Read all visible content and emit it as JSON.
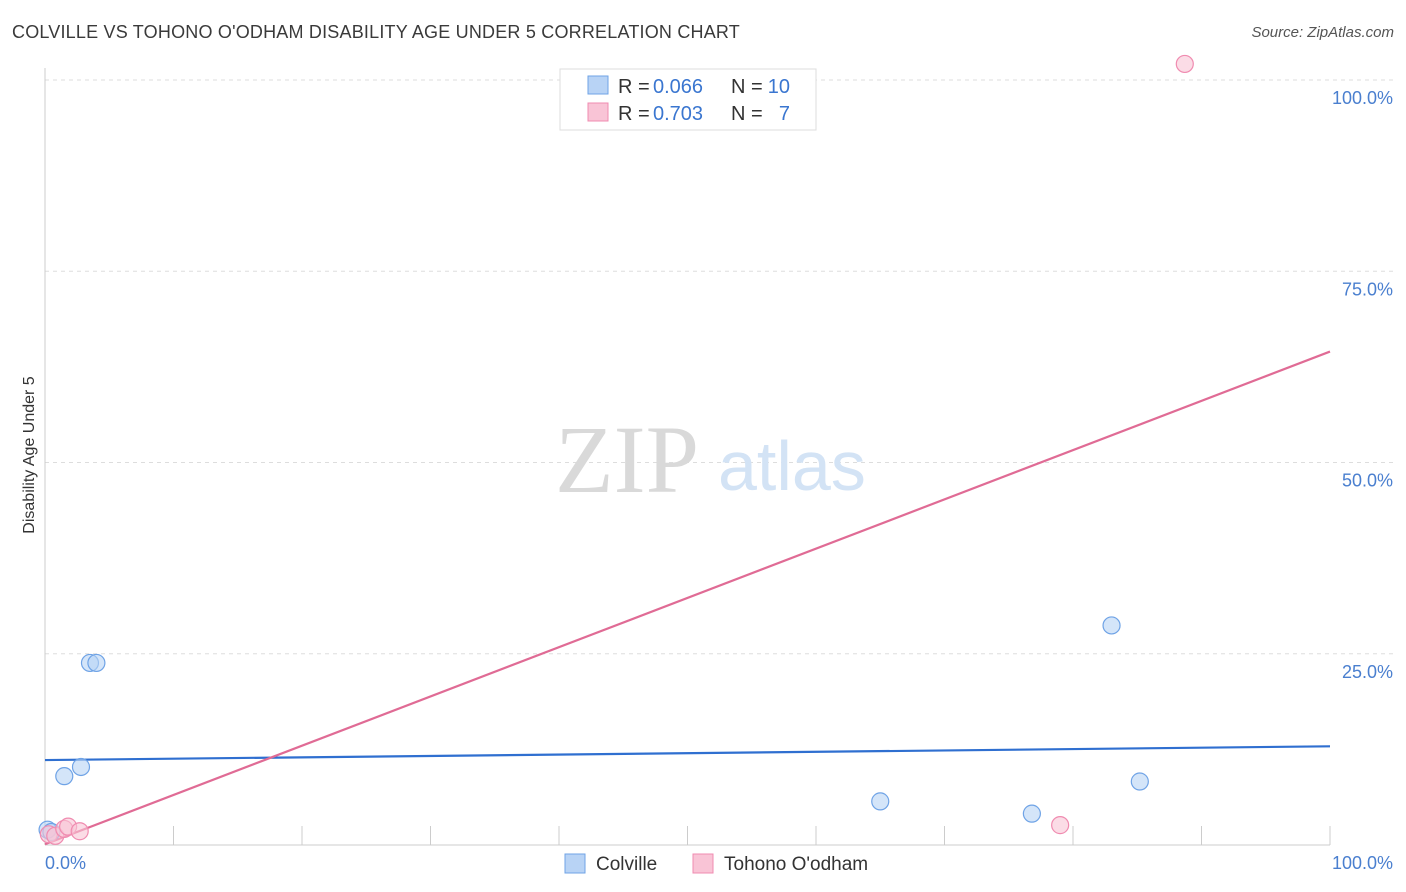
{
  "header": {
    "title": "COLVILLE VS TOHONO O'ODHAM DISABILITY AGE UNDER 5 CORRELATION CHART",
    "source": "Source: ZipAtlas.com"
  },
  "watermark": {
    "zip": "ZIP",
    "atlas": "atlas"
  },
  "colors": {
    "colville": "#6fa3e6",
    "colville_fill": "#b8d3f5",
    "colville_line": "#2f6fd0",
    "tohono": "#f08bb0",
    "tohono_fill": "#f9c4d6",
    "tohono_line": "#e06b95",
    "grid": "#dddddd",
    "tick_label": "#4a7fcf"
  },
  "legend": {
    "rows": [
      {
        "r_label": "R =",
        "r_value": "0.066",
        "n_label": "N =",
        "n_value": "10"
      },
      {
        "r_label": "R =",
        "r_value": "0.703",
        "n_label": "N =",
        "n_value": "7"
      }
    ]
  },
  "bottom_legend": {
    "series1": "Colville",
    "series2": "Tohono O'odham"
  },
  "chart_data": {
    "type": "scatter",
    "title": "COLVILLE VS TOHONO O'ODHAM DISABILITY AGE UNDER 5 CORRELATION CHART",
    "xlabel": "",
    "ylabel": "Disability Age Under 5",
    "xlim": [
      0,
      100
    ],
    "ylim": [
      0,
      100
    ],
    "x_tick_labels": {
      "min": "0.0%",
      "max": "100.0%"
    },
    "y_ticks": [
      {
        "value": 25,
        "label": "25.0%"
      },
      {
        "value": 50,
        "label": "50.0%"
      },
      {
        "value": 75,
        "label": "75.0%"
      },
      {
        "value": 100,
        "label": "100.0%"
      }
    ],
    "series": [
      {
        "name": "Colville",
        "R": 0.066,
        "N": 10,
        "points": [
          {
            "x": 0.2,
            "y": 2.0
          },
          {
            "x": 0.5,
            "y": 1.7
          },
          {
            "x": 1.5,
            "y": 9.0
          },
          {
            "x": 2.8,
            "y": 10.2
          },
          {
            "x": 3.5,
            "y": 23.8
          },
          {
            "x": 4.0,
            "y": 23.8
          },
          {
            "x": 65.0,
            "y": 5.7
          },
          {
            "x": 76.8,
            "y": 4.1
          },
          {
            "x": 83.0,
            "y": 28.7
          },
          {
            "x": 85.2,
            "y": 8.3
          }
        ],
        "trend": {
          "x0": 0,
          "y0": 11.1,
          "x1": 100,
          "y1": 12.9
        }
      },
      {
        "name": "Tohono O'odham",
        "R": 0.703,
        "N": 7,
        "points": [
          {
            "x": 0.3,
            "y": 1.4
          },
          {
            "x": 0.8,
            "y": 1.2
          },
          {
            "x": 1.5,
            "y": 2.1
          },
          {
            "x": 1.8,
            "y": 2.4
          },
          {
            "x": 2.7,
            "y": 1.8
          },
          {
            "x": 79.0,
            "y": 2.6
          },
          {
            "x": 88.7,
            "y": 102.1
          }
        ],
        "trend": {
          "x0": 0,
          "y0": 0.1,
          "x1": 100,
          "y1": 64.5
        }
      }
    ],
    "legend_position": "top-center",
    "grid": true
  }
}
